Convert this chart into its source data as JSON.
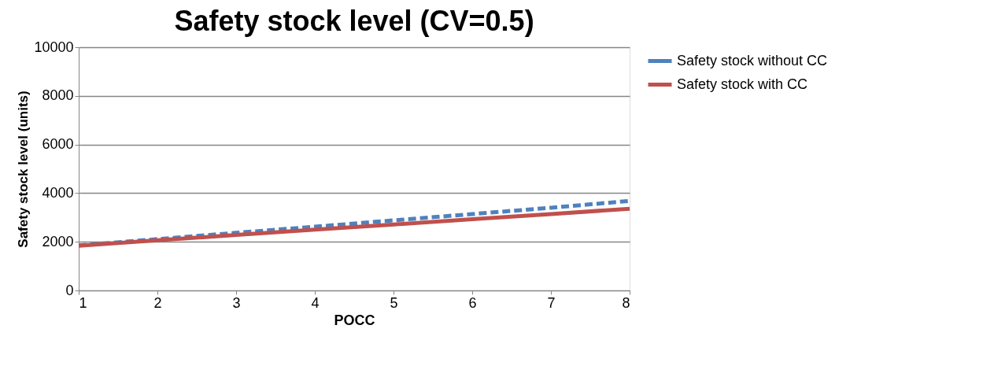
{
  "chart_data": {
    "type": "line",
    "title": "Safety stock level (CV=0.5)",
    "xlabel": "POCC",
    "ylabel": "Safety stock level (units)",
    "x": [
      1,
      2,
      3,
      4,
      5,
      6,
      7,
      8
    ],
    "series": [
      {
        "name": "Safety stock without CC",
        "color": "#4f81bd",
        "line_style": "dashed",
        "values": [
          1850,
          2110,
          2370,
          2620,
          2880,
          3140,
          3400,
          3680
        ]
      },
      {
        "name": "Safety stock with CC",
        "color": "#c0504d",
        "line_style": "solid",
        "values": [
          1840,
          2060,
          2280,
          2500,
          2710,
          2930,
          3140,
          3360
        ]
      }
    ],
    "xlim": [
      1,
      8
    ],
    "xticks": [
      1,
      2,
      3,
      4,
      5,
      6,
      7,
      8
    ],
    "ylim": [
      0,
      10000
    ],
    "yticks": [
      0,
      2000,
      4000,
      6000,
      8000,
      10000
    ],
    "grid": "y",
    "legend": "right",
    "marker": "none"
  }
}
